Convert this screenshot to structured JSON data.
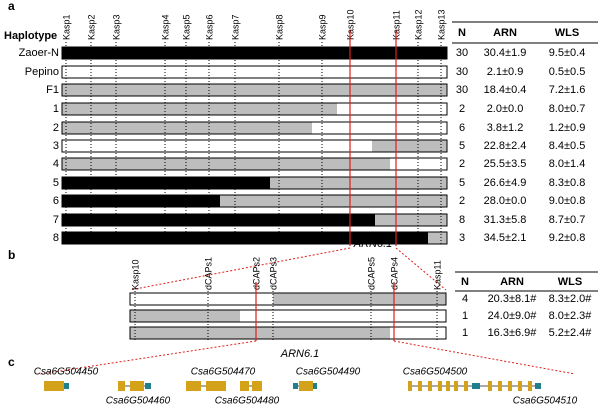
{
  "panel_a": {
    "label": "a",
    "row_header": "Haplotype",
    "columns": [
      "N",
      "ARN",
      "WLS"
    ],
    "markers": [
      "Kasp1",
      "Kasp2",
      "Kasp3",
      "Kasp4",
      "Kasp5",
      "Kasp6",
      "Kasp7",
      "Kasp8",
      "Kasp9",
      "Kasp10",
      "Kasp11",
      "Kasp12",
      "Kasp13"
    ],
    "rows": [
      {
        "haplotype": "Zaoer-N",
        "n": 30,
        "arn": "30.4±1.9",
        "wls": "9.5±0.4"
      },
      {
        "haplotype": "Pepino",
        "n": 30,
        "arn": "2.1±0.9",
        "wls": "0.5±0.5"
      },
      {
        "haplotype": "F1",
        "n": 30,
        "arn": "18.4±0.4",
        "wls": "7.2±1.6"
      },
      {
        "haplotype": "1",
        "n": 2,
        "arn": "2.0±0.0",
        "wls": "8.0±0.7"
      },
      {
        "haplotype": "2",
        "n": 6,
        "arn": "3.8±1.2",
        "wls": "1.2±0.9"
      },
      {
        "haplotype": "3",
        "n": 5,
        "arn": "22.8±2.4",
        "wls": "8.4±0.5"
      },
      {
        "haplotype": "4",
        "n": 2,
        "arn": "25.5±3.5",
        "wls": "8.0±1.4"
      },
      {
        "haplotype": "5",
        "n": 5,
        "arn": "26.6±4.9",
        "wls": "8.3±0.8"
      },
      {
        "haplotype": "6",
        "n": 2,
        "arn": "28.0±0.0",
        "wls": "9.0±0.8"
      },
      {
        "haplotype": "7",
        "n": 8,
        "arn": "31.3±5.8",
        "wls": "8.7±0.7"
      },
      {
        "haplotype": "8",
        "n": 3,
        "arn": "34.5±2.1",
        "wls": "9.2±0.8"
      }
    ],
    "qtl_label": "ARN6.1"
  },
  "panel_b": {
    "label": "b",
    "columns": [
      "N",
      "ARN",
      "WLS"
    ],
    "markers": [
      "Kasp10",
      "dCAPs1",
      "dCAPs2",
      "dCAPs3",
      "dCAPs5",
      "dCAPs4",
      "Kasp11"
    ],
    "rows": [
      {
        "n": 4,
        "arn": "20.3±8.1#",
        "wls": "8.3±2.0#"
      },
      {
        "n": 1,
        "arn": "24.0±9.0#",
        "wls": "8.0±2.3#"
      },
      {
        "n": 1,
        "arn": "16.3±6.9#",
        "wls": "5.2±2.4#"
      }
    ]
  },
  "panel_c": {
    "label": "c",
    "qtl_label": "ARN6.1",
    "genes": [
      "Csa6G504450",
      "Csa6G504460",
      "Csa6G504470",
      "Csa6G504480",
      "Csa6G504490",
      "Csa6G504500",
      "Csa6G504510"
    ]
  }
}
